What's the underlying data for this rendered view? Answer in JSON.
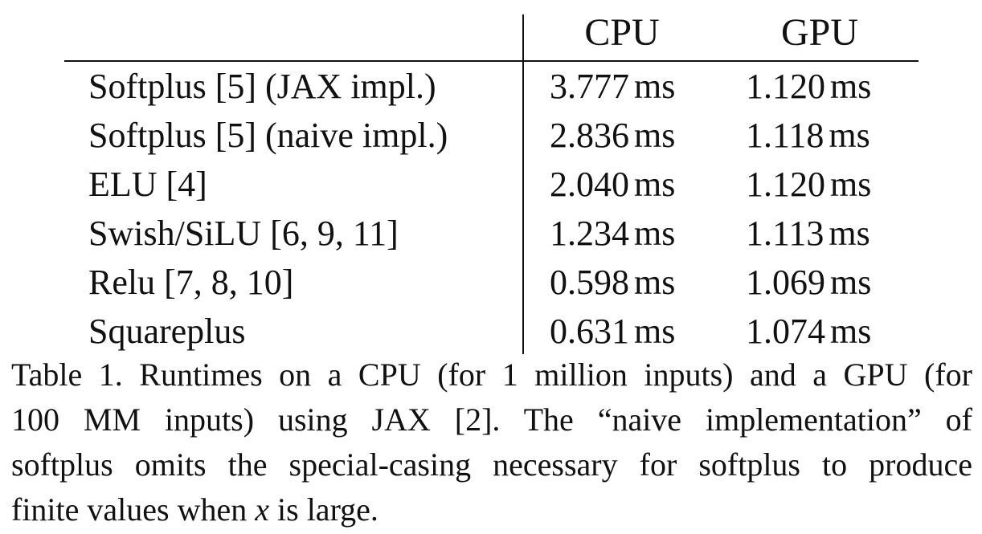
{
  "table": {
    "headers": {
      "method": "",
      "cpu": "CPU",
      "gpu": "GPU"
    },
    "unit": "ms",
    "rows": [
      {
        "method": "Softplus [5] (JAX impl.)",
        "cpu": "3.777",
        "gpu": "1.120"
      },
      {
        "method": "Softplus [5] (naive impl.)",
        "cpu": "2.836",
        "gpu": "1.118"
      },
      {
        "method": "ELU [4]",
        "cpu": "2.040",
        "gpu": "1.120"
      },
      {
        "method": "Swish/SiLU [6, 9, 11]",
        "cpu": "1.234",
        "gpu": "1.113"
      },
      {
        "method": "Relu [7, 8, 10]",
        "cpu": "0.598",
        "gpu": "1.069"
      },
      {
        "method": "Squareplus",
        "cpu": "0.631",
        "gpu": "1.074"
      }
    ]
  },
  "caption": {
    "line1": "Table 1.  Runtimes on a CPU (for 1 million inputs) and a GPU (for",
    "line2": "100 MM inputs) using JAX [2].  The “naive implementation” of",
    "line3": "softplus omits the special-casing necessary for softplus to produce",
    "line4_before": "finite values when ",
    "line4_var": "x",
    "line4_after": " is large."
  }
}
